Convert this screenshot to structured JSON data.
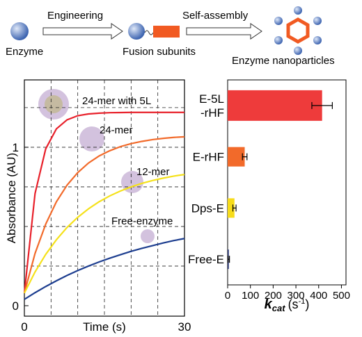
{
  "schematic": {
    "steps": [
      "Engineering",
      "Self-assembly"
    ],
    "labels": [
      "Enzyme",
      "Fusion subunits",
      "Enzyme nanoparticles"
    ]
  },
  "chart_data": [
    {
      "type": "line",
      "ylabel": "Absorbance (AU)",
      "xlabel": "Time (s)",
      "x": [
        0,
        2,
        4,
        6,
        8,
        10,
        12,
        14,
        16,
        18,
        20,
        22,
        24,
        26,
        28,
        30
      ],
      "xlim": [
        0,
        30
      ],
      "xticks": [
        0,
        30
      ],
      "xgrid": [
        5,
        10,
        15,
        20,
        25
      ],
      "ylim": [
        -0.066,
        1.425
      ],
      "yticks": [
        0,
        1
      ],
      "ygrid": [
        0.25,
        0.5,
        0.75,
        1,
        1.25
      ],
      "annotations": [
        "24-mer with 5L",
        "24-mer",
        "12-mer",
        "Free-enzyme"
      ],
      "series": [
        {
          "color": "#e8202a",
          "values": [
            0.08,
            0.708,
            0.99,
            1.116,
            1.173,
            1.199,
            1.21,
            1.215,
            1.218,
            1.219,
            1.22,
            1.22,
            1.22,
            1.22,
            1.22,
            1.22
          ]
        },
        {
          "color": "#f26a2a",
          "values": [
            0.08,
            0.33,
            0.515,
            0.656,
            0.761,
            0.84,
            0.9,
            0.945,
            0.978,
            1.004,
            1.023,
            1.037,
            1.048,
            1.056,
            1.062,
            1.066
          ]
        },
        {
          "color": "#f5e11a",
          "values": [
            0.08,
            0.213,
            0.324,
            0.416,
            0.494,
            0.558,
            0.611,
            0.656,
            0.693,
            0.724,
            0.75,
            0.772,
            0.79,
            0.805,
            0.818,
            0.828
          ]
        },
        {
          "color": "#1c3d8f",
          "values": [
            0.04,
            0.082,
            0.121,
            0.157,
            0.191,
            0.222,
            0.25,
            0.276,
            0.3,
            0.322,
            0.343,
            0.362,
            0.379,
            0.396,
            0.411,
            0.424
          ]
        }
      ]
    },
    {
      "type": "hbar",
      "categories": [
        [
          "E-5L",
          "-rHF"
        ],
        [
          "E-rHF"
        ],
        [
          "Dps-E"
        ],
        [
          "Free-E"
        ]
      ],
      "values": [
        415,
        75,
        30,
        5
      ],
      "errors": [
        45,
        10,
        7,
        3
      ],
      "colors": [
        "#ee3b3b",
        "#f26a2a",
        "#f7dc1a",
        "#1c2a6e"
      ],
      "xlim": [
        0,
        520
      ],
      "xticks": [
        0,
        100,
        200,
        300,
        400,
        500
      ],
      "xlabel": {
        "symbol": "k",
        "sub": "cat",
        "unit": "(s",
        "sup": "-1",
        "close": ")"
      }
    }
  ]
}
